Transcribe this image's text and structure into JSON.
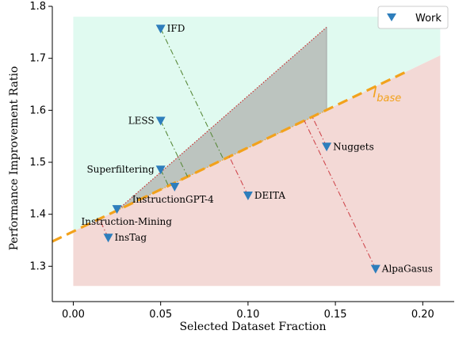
{
  "chart_data": {
    "type": "scatter",
    "xlabel": "Selected Dataset Fraction",
    "ylabel": "Performance Improvement Ratio",
    "xlim": [
      -0.012,
      0.218
    ],
    "ylim": [
      1.232,
      1.8
    ],
    "xticks": [
      0.0,
      0.05,
      0.1,
      0.15,
      0.2
    ],
    "xtick_labels": [
      "0.00",
      "0.05",
      "0.10",
      "0.15",
      "0.20"
    ],
    "yticks": [
      1.3,
      1.4,
      1.5,
      1.6,
      1.7,
      1.8
    ],
    "ytick_labels": [
      "1.3",
      "1.4",
      "1.5",
      "1.6",
      "1.7",
      "1.8"
    ],
    "grid": false,
    "legend": {
      "position": "top-right",
      "entries": [
        "Work"
      ]
    },
    "colors": {
      "marker": "#2e7ebc",
      "base_line": "#f2a21c",
      "upper_region": "#e0faf0",
      "lower_region": "#f3d9d6",
      "triangle": "#bcc4bf",
      "drop_green": "#5a8a3c",
      "drop_red": "#d04a50"
    },
    "base_label": {
      "main": "l",
      "sub": "base"
    },
    "base_line": {
      "x0": 0.0,
      "y0": 1.367,
      "slope": 1.612,
      "x_end": 0.19
    },
    "series": [
      {
        "name": "Work",
        "points": [
          {
            "label": "IFD",
            "x": 0.05,
            "y": 1.757,
            "label_pos": "right"
          },
          {
            "label": "LESS",
            "x": 0.05,
            "y": 1.58,
            "label_pos": "left"
          },
          {
            "label": "Superfiltering",
            "x": 0.05,
            "y": 1.486,
            "label_pos": "left"
          },
          {
            "label": "InstructionGPT-4",
            "x": 0.058,
            "y": 1.453,
            "label_pos": "below"
          },
          {
            "label": "Instruction-Mining",
            "x": 0.025,
            "y": 1.41,
            "label_pos": "below-left"
          },
          {
            "label": "InsTag",
            "x": 0.02,
            "y": 1.355,
            "label_pos": "right"
          },
          {
            "label": "DEITA",
            "x": 0.1,
            "y": 1.436,
            "label_pos": "right"
          },
          {
            "label": "Nuggets",
            "x": 0.145,
            "y": 1.53,
            "label_pos": "right"
          },
          {
            "label": "AlpaGasus",
            "x": 0.173,
            "y": 1.295,
            "label_pos": "right"
          }
        ]
      }
    ]
  }
}
